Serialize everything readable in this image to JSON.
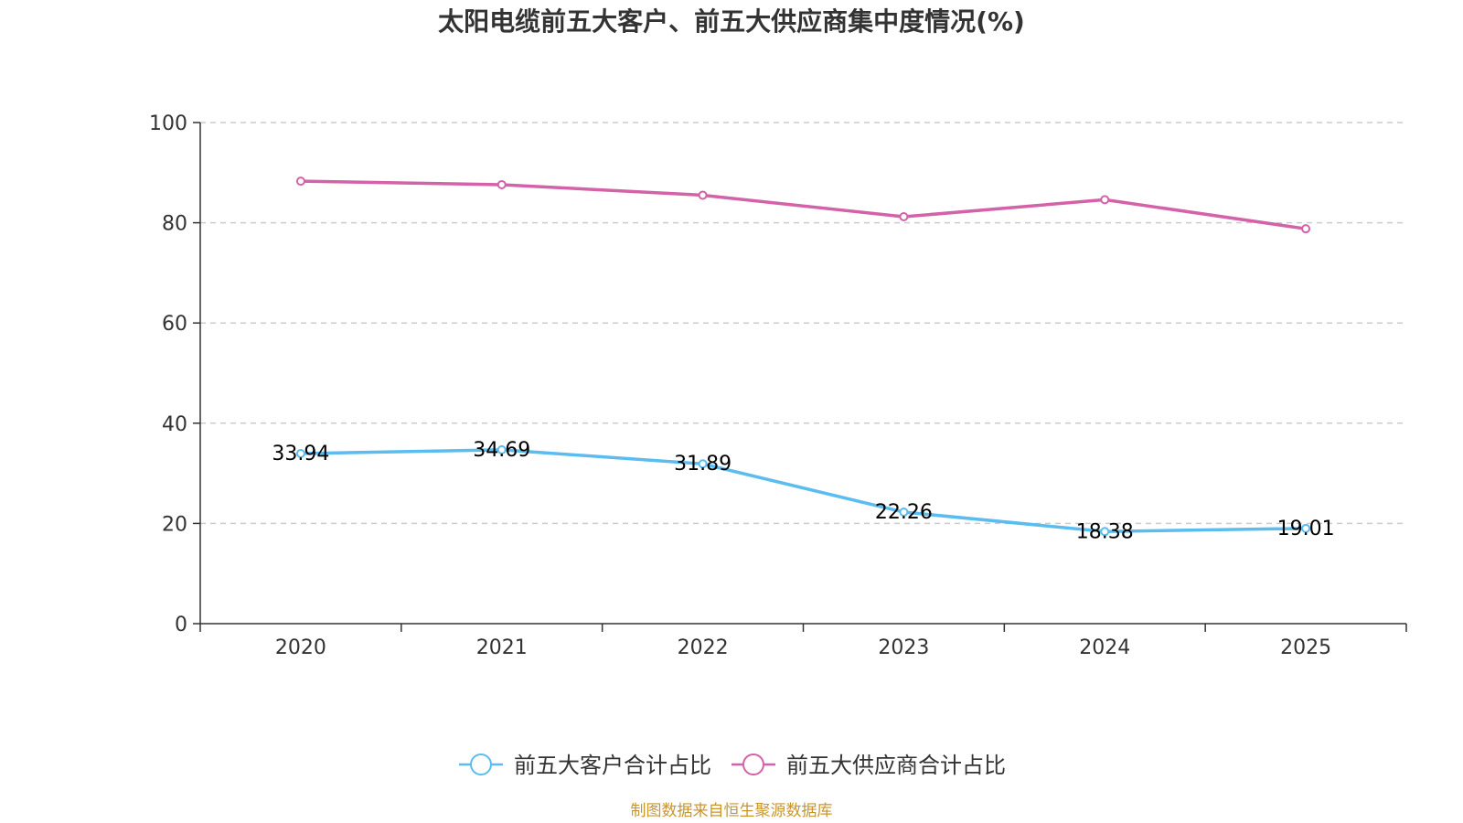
{
  "chart_data": {
    "type": "line",
    "title": "太阳电缆前五大客户、前五大供应商集中度情况(%)",
    "categories": [
      "2020",
      "2021",
      "2022",
      "2023",
      "2024",
      "2025"
    ],
    "ylim": [
      0,
      100
    ],
    "yticks": [
      0,
      20,
      40,
      60,
      80,
      100
    ],
    "grid": true,
    "legend_position": "bottom",
    "series": [
      {
        "name": "前五大客户合计占比",
        "color": "#5bbcf0",
        "values": [
          33.94,
          34.69,
          31.89,
          22.26,
          18.38,
          19.01
        ],
        "show_labels": true
      },
      {
        "name": "前五大供应商合计占比",
        "color": "#d362a8",
        "values": [
          88.3,
          87.6,
          85.5,
          81.2,
          84.6,
          78.8
        ],
        "show_labels": false
      }
    ]
  },
  "source": {
    "text": "制图数据来自恒生聚源数据库",
    "color": "#c8962e"
  }
}
